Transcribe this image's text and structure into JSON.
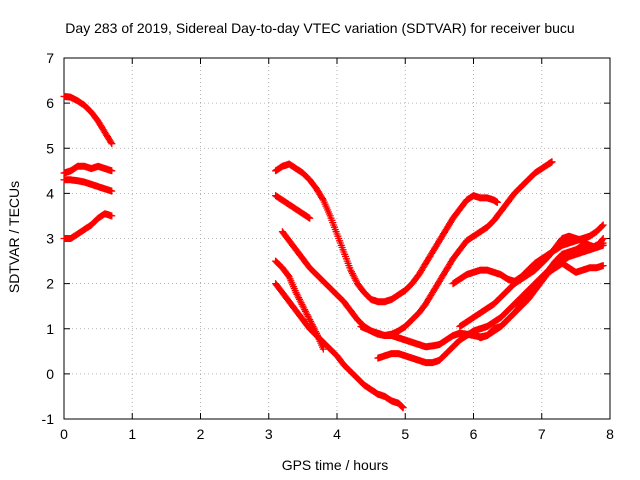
{
  "chart_data": {
    "type": "scatter",
    "title": "Day 283 of 2019, Sidereal Day-to-day VTEC variation (SDTVAR) for receiver bucu",
    "xlabel": "GPS time / hours",
    "ylabel": "SDTVAR / TECUs",
    "xlim": [
      0,
      8
    ],
    "ylim": [
      -1,
      7
    ],
    "xticks": [
      0,
      1,
      2,
      3,
      4,
      5,
      6,
      7,
      8
    ],
    "yticks": [
      -1,
      0,
      1,
      2,
      3,
      4,
      5,
      6,
      7
    ],
    "grid": true,
    "marker": "plus",
    "color": "#ff0000",
    "series": [
      {
        "x": [
          0.0,
          0.1,
          0.2,
          0.3,
          0.4,
          0.5,
          0.6,
          0.7
        ],
        "values": [
          6.15,
          6.13,
          6.05,
          5.95,
          5.8,
          5.6,
          5.35,
          5.1
        ]
      },
      {
        "x": [
          0.0,
          0.1,
          0.2,
          0.3,
          0.4,
          0.5,
          0.6,
          0.7
        ],
        "values": [
          4.45,
          4.5,
          4.6,
          4.6,
          4.55,
          4.6,
          4.55,
          4.5
        ]
      },
      {
        "x": [
          0.0,
          0.1,
          0.2,
          0.3,
          0.4,
          0.5,
          0.6,
          0.7
        ],
        "values": [
          4.3,
          4.3,
          4.28,
          4.25,
          4.2,
          4.15,
          4.1,
          4.05
        ]
      },
      {
        "x": [
          0.0,
          0.1,
          0.2,
          0.3,
          0.4,
          0.5,
          0.6,
          0.7
        ],
        "values": [
          3.0,
          3.0,
          3.1,
          3.2,
          3.3,
          3.45,
          3.55,
          3.5
        ]
      },
      {
        "x": [
          3.1,
          3.2,
          3.3,
          3.4,
          3.5,
          3.6,
          3.7,
          3.8,
          3.9,
          4.0,
          4.1,
          4.2,
          4.3,
          4.4,
          4.5,
          4.6,
          4.7,
          4.8,
          4.9,
          5.0,
          5.1,
          5.2,
          5.3,
          5.4,
          5.5,
          5.6,
          5.7,
          5.8,
          5.9,
          6.0,
          6.1,
          6.2,
          6.3,
          6.35
        ],
        "values": [
          4.5,
          4.6,
          4.65,
          4.55,
          4.45,
          4.3,
          4.1,
          3.85,
          3.5,
          3.1,
          2.7,
          2.3,
          2.0,
          1.8,
          1.65,
          1.6,
          1.6,
          1.65,
          1.75,
          1.85,
          2.0,
          2.2,
          2.45,
          2.7,
          2.95,
          3.2,
          3.45,
          3.65,
          3.85,
          3.95,
          3.9,
          3.9,
          3.85,
          3.8
        ]
      },
      {
        "x": [
          3.1,
          3.2,
          3.3,
          3.4,
          3.5,
          3.6
        ],
        "values": [
          3.95,
          3.85,
          3.75,
          3.65,
          3.55,
          3.45
        ]
      },
      {
        "x": [
          3.2,
          3.3,
          3.4,
          3.5,
          3.6,
          3.7,
          3.8,
          3.9,
          4.0,
          4.1,
          4.2,
          4.3,
          4.4,
          4.5,
          4.6,
          4.7,
          4.8,
          4.9,
          5.0,
          5.1,
          5.2,
          5.3,
          5.4,
          5.5,
          5.6,
          5.7,
          5.8,
          5.9,
          6.0,
          6.1,
          6.2,
          6.3,
          6.4,
          6.5,
          6.6,
          6.7,
          6.8,
          6.9,
          7.0,
          7.1,
          7.15
        ],
        "values": [
          3.15,
          2.95,
          2.75,
          2.55,
          2.35,
          2.2,
          2.05,
          1.9,
          1.75,
          1.6,
          1.4,
          1.2,
          1.05,
          0.95,
          0.88,
          0.85,
          0.88,
          0.95,
          1.05,
          1.2,
          1.35,
          1.55,
          1.8,
          2.05,
          2.3,
          2.55,
          2.75,
          2.95,
          3.05,
          3.15,
          3.25,
          3.4,
          3.6,
          3.8,
          4.0,
          4.15,
          4.3,
          4.45,
          4.55,
          4.65,
          4.7
        ]
      },
      {
        "x": [
          3.1,
          3.2,
          3.3,
          3.4,
          3.5,
          3.6,
          3.7,
          3.8,
          3.9,
          4.0,
          4.1,
          4.2,
          4.3,
          4.4,
          4.5,
          4.6,
          4.7,
          4.8,
          4.9,
          4.97
        ],
        "values": [
          2.0,
          1.8,
          1.6,
          1.4,
          1.2,
          1.0,
          0.85,
          0.7,
          0.55,
          0.4,
          0.2,
          0.05,
          -0.1,
          -0.25,
          -0.35,
          -0.45,
          -0.5,
          -0.6,
          -0.65,
          -0.75
        ]
      },
      {
        "x": [
          3.1,
          3.2,
          3.3,
          3.4,
          3.5,
          3.6,
          3.7,
          3.8
        ],
        "values": [
          2.5,
          2.35,
          2.15,
          1.8,
          1.5,
          1.2,
          0.9,
          0.55
        ]
      },
      {
        "x": [
          4.35,
          4.5,
          4.6,
          4.7,
          4.8,
          4.9,
          5.0,
          5.1,
          5.2,
          5.3,
          5.4,
          5.5,
          5.6,
          5.7,
          5.8,
          5.9,
          6.0,
          6.1,
          6.2,
          6.3,
          6.4,
          6.5,
          6.6,
          6.7,
          6.8,
          6.9,
          7.0,
          7.1,
          7.2,
          7.3,
          7.4,
          7.5,
          7.6,
          7.7,
          7.8,
          7.9
        ],
        "values": [
          1.05,
          0.95,
          0.9,
          0.85,
          0.85,
          0.8,
          0.75,
          0.7,
          0.65,
          0.6,
          0.62,
          0.65,
          0.75,
          0.85,
          0.9,
          0.88,
          0.85,
          0.82,
          0.85,
          0.95,
          1.05,
          1.2,
          1.35,
          1.55,
          1.75,
          1.95,
          2.1,
          2.25,
          2.35,
          2.45,
          2.35,
          2.25,
          2.3,
          2.35,
          2.35,
          2.4
        ]
      },
      {
        "x": [
          4.6,
          4.7,
          4.8,
          4.9,
          5.0,
          5.1,
          5.2,
          5.3,
          5.4,
          5.5,
          5.6,
          5.7,
          5.8,
          5.9,
          6.0,
          6.1,
          6.2,
          6.3,
          6.4,
          6.5,
          6.6,
          6.7,
          6.8,
          6.9,
          7.0,
          7.1,
          7.2,
          7.3,
          7.4,
          7.5,
          7.6,
          7.7,
          7.8,
          7.9
        ],
        "values": [
          0.35,
          0.4,
          0.45,
          0.45,
          0.4,
          0.35,
          0.3,
          0.25,
          0.25,
          0.3,
          0.45,
          0.6,
          0.75,
          0.85,
          0.95,
          1.0,
          1.05,
          1.15,
          1.25,
          1.4,
          1.55,
          1.7,
          1.85,
          2.0,
          2.15,
          2.3,
          2.5,
          2.65,
          2.7,
          2.75,
          2.85,
          2.75,
          2.85,
          2.9
        ]
      },
      {
        "x": [
          5.7,
          5.8,
          5.9,
          6.0,
          6.1,
          6.2,
          6.3,
          6.4,
          6.5,
          6.6,
          6.7,
          6.8,
          6.9,
          7.0,
          7.1,
          7.2,
          7.3,
          7.4,
          7.5,
          7.6,
          7.7,
          7.8,
          7.9
        ],
        "values": [
          2.0,
          2.1,
          2.2,
          2.25,
          2.3,
          2.3,
          2.25,
          2.2,
          2.1,
          2.05,
          2.15,
          2.3,
          2.45,
          2.55,
          2.65,
          2.75,
          2.85,
          2.9,
          2.95,
          3.0,
          3.05,
          3.15,
          3.3
        ]
      },
      {
        "x": [
          5.8,
          5.9,
          6.0,
          6.1,
          6.2,
          6.3,
          6.4,
          6.5,
          6.6,
          6.7,
          6.8,
          6.9,
          7.0,
          7.1,
          7.2,
          7.3,
          7.4,
          7.5,
          7.6,
          7.7,
          7.8,
          7.9
        ],
        "values": [
          1.05,
          1.15,
          1.25,
          1.35,
          1.45,
          1.55,
          1.7,
          1.85,
          2.0,
          2.1,
          2.2,
          2.3,
          2.45,
          2.6,
          2.8,
          3.0,
          3.05,
          3.0,
          2.95,
          2.85,
          2.8,
          3.0
        ]
      },
      {
        "x": [
          6.0,
          6.1,
          6.2,
          6.3,
          6.4,
          6.5,
          6.6,
          6.7,
          6.8,
          6.9,
          7.0,
          7.1,
          7.2,
          7.3,
          7.4,
          7.5,
          7.6,
          7.7,
          7.8,
          7.9
        ],
        "values": [
          0.9,
          0.8,
          0.85,
          1.0,
          1.05,
          1.2,
          1.35,
          1.5,
          1.65,
          1.85,
          2.05,
          2.25,
          2.4,
          2.5,
          2.6,
          2.65,
          2.7,
          2.75,
          2.8,
          2.85
        ]
      }
    ]
  }
}
